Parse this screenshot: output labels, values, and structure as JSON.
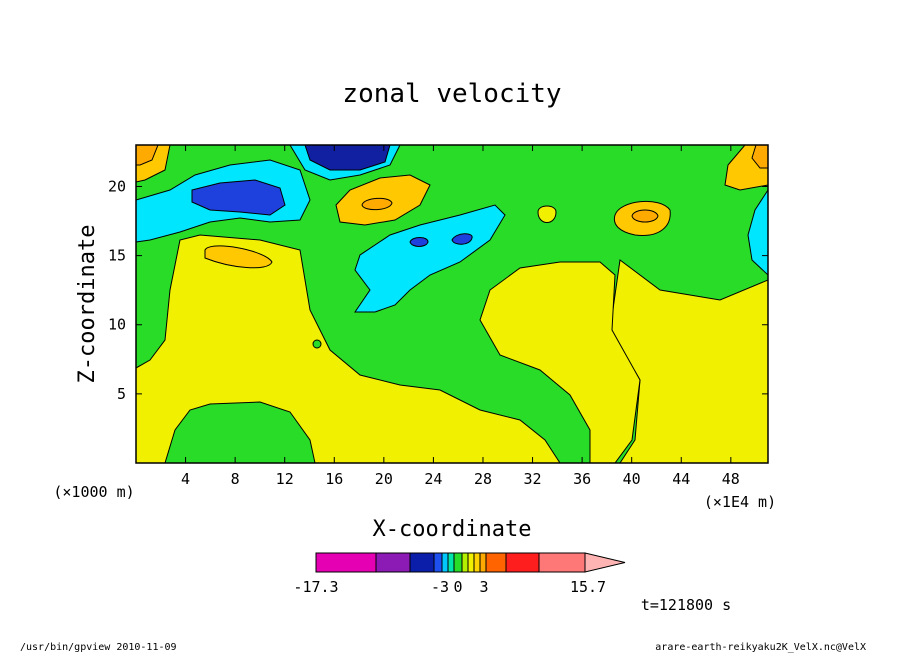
{
  "chart_data": {
    "type": "heatmap",
    "title": "zonal velocity",
    "xlabel": "X-coordinate",
    "ylabel": "Z-coordinate",
    "x_unit_left": "(×1000 m)",
    "x_unit_right": "(×1E4 m)",
    "xlim": [
      0,
      51
    ],
    "ylim": [
      0,
      23
    ],
    "xticks": [
      4,
      8,
      12,
      16,
      20,
      24,
      28,
      32,
      36,
      40,
      44,
      48
    ],
    "yticks": [
      5,
      10,
      15,
      20
    ],
    "colorbar": {
      "levels": [
        -17.3,
        -15,
        -12,
        -9,
        -6,
        -3,
        -2,
        -1,
        0,
        1,
        2,
        3,
        6,
        9,
        12,
        15.7
      ],
      "colors": [
        "#e600b4",
        "#8c1ab4",
        "#0a1eaa",
        "#1e50f0",
        "#00c8ff",
        "#00e6aa",
        "#28dc28",
        "#b4f000",
        "#f0f000",
        "#ffd200",
        "#ffaa00",
        "#ff6400",
        "#ff1e1e",
        "#ff7878",
        "#ffb4b4"
      ],
      "labels": [
        "-17.3",
        "-3",
        "0",
        "3",
        "15.7"
      ]
    },
    "regions": [
      {
        "value": "0 to 1",
        "color": "#f0f000",
        "desc": "background"
      },
      {
        "value": "-1 to 0",
        "color": "#28dc28"
      },
      {
        "value": "-2 to -1",
        "color": "#00e6ff"
      },
      {
        "value": "-3 to -2",
        "color": "#1e40dc"
      },
      {
        "value": "< -3",
        "color": "#1020a0"
      },
      {
        "value": "1 to 2",
        "color": "#ffc800"
      }
    ],
    "time_label": "t=121800 s"
  },
  "footer": {
    "left": "/usr/bin/gpview  2010-11-09",
    "right": "arare-earth-reikyaku2K_VelX.nc@VelX"
  }
}
